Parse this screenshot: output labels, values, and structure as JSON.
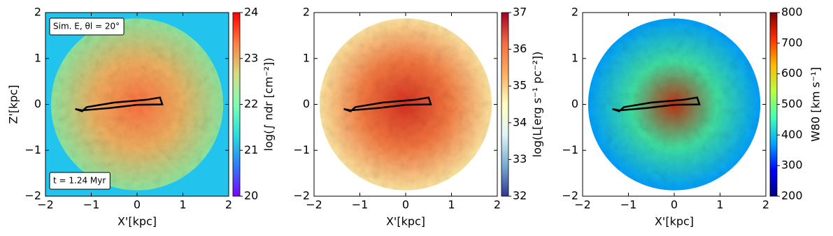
{
  "chart_data": [
    {
      "type": "heatmap",
      "xlabel": "X'[kpc]",
      "ylabel": "Z'[kpc]",
      "xlim": [
        -2,
        2
      ],
      "ylim": [
        -2,
        2
      ],
      "xticks": [
        {
          "value": -2,
          "label": "−2"
        },
        {
          "value": -1,
          "label": "−1"
        },
        0,
        1,
        2
      ],
      "yticks": [
        {
          "value": -2,
          "label": "−2"
        },
        {
          "value": -1,
          "label": "−1"
        },
        0,
        1,
        2
      ],
      "colormap": "rainbow",
      "clim": [
        20,
        24
      ],
      "cticks": [
        20,
        21,
        22,
        23,
        24
      ],
      "clabel": "log(∫ ndr [cm⁻²])",
      "annotations": [
        "Sim. E, θl = 20°",
        "t = 1.24 Myr"
      ]
    },
    {
      "type": "heatmap",
      "xlabel": "X'[kpc]",
      "xlim": [
        -2,
        2
      ],
      "ylim": [
        -2,
        2
      ],
      "xticks": [
        {
          "value": -2,
          "label": "−2"
        },
        {
          "value": -1,
          "label": "−1"
        },
        0,
        1,
        2
      ],
      "yticks": [
        {
          "value": -2,
          "label": "−2"
        },
        {
          "value": -1,
          "label": "−1"
        },
        0,
        1,
        2
      ],
      "colormap": "RdYlBu_r",
      "clim": [
        32,
        37
      ],
      "cticks": [
        32,
        33,
        34,
        35,
        36,
        37
      ],
      "clabel": "log(L[erg s⁻¹ pc⁻²])"
    },
    {
      "type": "heatmap",
      "xlabel": "X'[kpc]",
      "xlim": [
        -2,
        2
      ],
      "ylim": [
        -2,
        2
      ],
      "xticks": [
        {
          "value": -2,
          "label": "−2"
        },
        {
          "value": -1,
          "label": "−1"
        },
        0,
        1,
        2
      ],
      "yticks": [
        {
          "value": -2,
          "label": "−2"
        },
        {
          "value": -1,
          "label": "−1"
        },
        0,
        1,
        2
      ],
      "colormap": "jet",
      "clim": [
        200,
        800
      ],
      "cticks": [
        200,
        300,
        400,
        500,
        600,
        700,
        800
      ],
      "clabel": "W80 [km s⁻¹]"
    }
  ]
}
